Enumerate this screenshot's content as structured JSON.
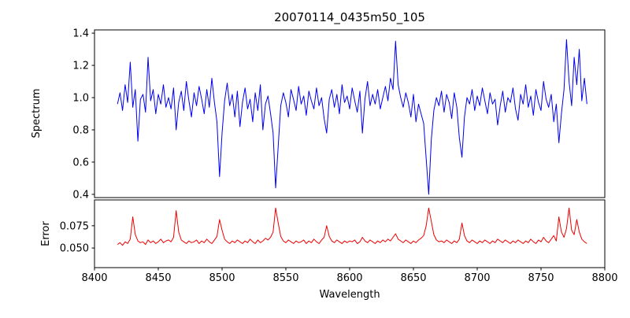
{
  "chart_data": {
    "type": "line",
    "title": "20070114_0435m50_105",
    "xlabel": "Wavelength",
    "xlim": [
      8400,
      8800
    ],
    "x_start": 8418,
    "x_step": 2,
    "x_ticks": [
      8400,
      8450,
      8500,
      8550,
      8600,
      8650,
      8700,
      8750,
      8800
    ],
    "x_tick_labels": [
      "8400",
      "8450",
      "8500",
      "8550",
      "8600",
      "8650",
      "8700",
      "8750",
      "8800"
    ],
    "grid": false,
    "legend": "none",
    "panels": [
      {
        "name": "spectrum-panel",
        "ylabel": "Spectrum",
        "color": "#0000ee",
        "ylim": [
          0.38,
          1.42
        ],
        "y_ticks": [
          0.4,
          0.6,
          0.8,
          1.0,
          1.2,
          1.4
        ],
        "y_tick_labels": [
          "0.4",
          "0.6",
          "0.8",
          "1.0",
          "1.2",
          "1.4"
        ],
        "values": [
          0.96,
          1.03,
          0.92,
          1.08,
          0.97,
          1.22,
          0.94,
          1.05,
          0.73,
          0.99,
          1.02,
          0.91,
          1.25,
          0.98,
          1.05,
          0.9,
          1.02,
          0.96,
          1.08,
          0.94,
          1.0,
          0.93,
          1.06,
          0.8,
          0.97,
          1.04,
          0.92,
          1.1,
          0.98,
          0.88,
          1.03,
          0.95,
          1.07,
          0.99,
          0.9,
          1.05,
          0.94,
          1.12,
          0.97,
          0.85,
          0.51,
          0.78,
          0.98,
          1.09,
          0.95,
          1.02,
          0.88,
          1.04,
          0.82,
          0.97,
          1.06,
          0.93,
          0.99,
          0.85,
          1.03,
          0.92,
          1.08,
          0.8,
          0.96,
          1.01,
          0.9,
          0.78,
          0.44,
          0.7,
          0.95,
          1.03,
          0.97,
          0.88,
          1.05,
          0.99,
          0.92,
          1.07,
          0.96,
          1.01,
          0.89,
          1.04,
          0.98,
          0.93,
          1.06,
          0.95,
          1.0,
          0.87,
          0.78,
          0.99,
          1.05,
          0.94,
          1.02,
          0.9,
          1.08,
          0.97,
          1.01,
          0.93,
          1.06,
          0.98,
          0.91,
          1.04,
          0.78,
          0.99,
          1.1,
          0.95,
          1.02,
          0.96,
          1.05,
          0.93,
          1.0,
          1.07,
          0.98,
          1.12,
          1.05,
          1.35,
          1.08,
          1.0,
          0.94,
          1.03,
          0.97,
          0.88,
          1.02,
          0.85,
          0.96,
          0.9,
          0.84,
          0.62,
          0.4,
          0.74,
          0.92,
          1.0,
          0.95,
          1.04,
          0.91,
          1.02,
          0.97,
          0.87,
          1.03,
          0.94,
          0.75,
          0.63,
          0.88,
          1.0,
          0.96,
          1.05,
          0.92,
          1.01,
          0.95,
          1.06,
          0.98,
          0.9,
          1.03,
          0.96,
          0.99,
          0.83,
          0.95,
          1.04,
          0.91,
          1.0,
          0.97,
          1.06,
          0.93,
          0.86,
          1.02,
          0.96,
          1.08,
          0.94,
          1.01,
          0.89,
          1.05,
          0.97,
          0.92,
          1.1,
          0.99,
          0.94,
          1.02,
          0.85,
          0.96,
          0.72,
          0.9,
          1.05,
          1.36,
          1.1,
          0.95,
          1.25,
          1.08,
          1.3,
          0.98,
          1.12,
          0.96
        ]
      },
      {
        "name": "error-panel",
        "ylabel": "Error",
        "color": "#ee0000",
        "ylim": [
          0.028,
          0.104
        ],
        "y_ticks": [
          0.05,
          0.075
        ],
        "y_tick_labels": [
          "0.050",
          "0.075"
        ],
        "values": [
          0.054,
          0.056,
          0.053,
          0.057,
          0.055,
          0.06,
          0.085,
          0.065,
          0.058,
          0.056,
          0.057,
          0.054,
          0.059,
          0.056,
          0.058,
          0.055,
          0.057,
          0.06,
          0.056,
          0.058,
          0.059,
          0.057,
          0.062,
          0.092,
          0.068,
          0.059,
          0.057,
          0.055,
          0.058,
          0.056,
          0.057,
          0.059,
          0.055,
          0.058,
          0.056,
          0.06,
          0.057,
          0.055,
          0.059,
          0.063,
          0.082,
          0.07,
          0.06,
          0.057,
          0.055,
          0.058,
          0.056,
          0.059,
          0.057,
          0.055,
          0.058,
          0.056,
          0.06,
          0.057,
          0.055,
          0.059,
          0.056,
          0.058,
          0.061,
          0.059,
          0.062,
          0.068,
          0.095,
          0.078,
          0.063,
          0.058,
          0.056,
          0.059,
          0.057,
          0.055,
          0.058,
          0.056,
          0.057,
          0.059,
          0.055,
          0.058,
          0.056,
          0.06,
          0.057,
          0.055,
          0.059,
          0.062,
          0.075,
          0.063,
          0.058,
          0.056,
          0.059,
          0.057,
          0.055,
          0.058,
          0.056,
          0.058,
          0.057,
          0.059,
          0.055,
          0.057,
          0.062,
          0.058,
          0.056,
          0.059,
          0.057,
          0.055,
          0.058,
          0.056,
          0.059,
          0.057,
          0.06,
          0.058,
          0.062,
          0.066,
          0.06,
          0.058,
          0.056,
          0.059,
          0.057,
          0.055,
          0.058,
          0.056,
          0.059,
          0.061,
          0.064,
          0.075,
          0.095,
          0.08,
          0.065,
          0.059,
          0.057,
          0.058,
          0.056,
          0.059,
          0.057,
          0.055,
          0.058,
          0.056,
          0.06,
          0.078,
          0.064,
          0.058,
          0.056,
          0.059,
          0.057,
          0.055,
          0.058,
          0.056,
          0.059,
          0.057,
          0.055,
          0.058,
          0.056,
          0.06,
          0.058,
          0.056,
          0.059,
          0.057,
          0.055,
          0.058,
          0.056,
          0.059,
          0.057,
          0.055,
          0.058,
          0.056,
          0.06,
          0.057,
          0.055,
          0.059,
          0.057,
          0.062,
          0.058,
          0.056,
          0.06,
          0.064,
          0.058,
          0.085,
          0.068,
          0.062,
          0.072,
          0.095,
          0.07,
          0.065,
          0.082,
          0.068,
          0.06,
          0.057,
          0.055
        ]
      }
    ]
  }
}
